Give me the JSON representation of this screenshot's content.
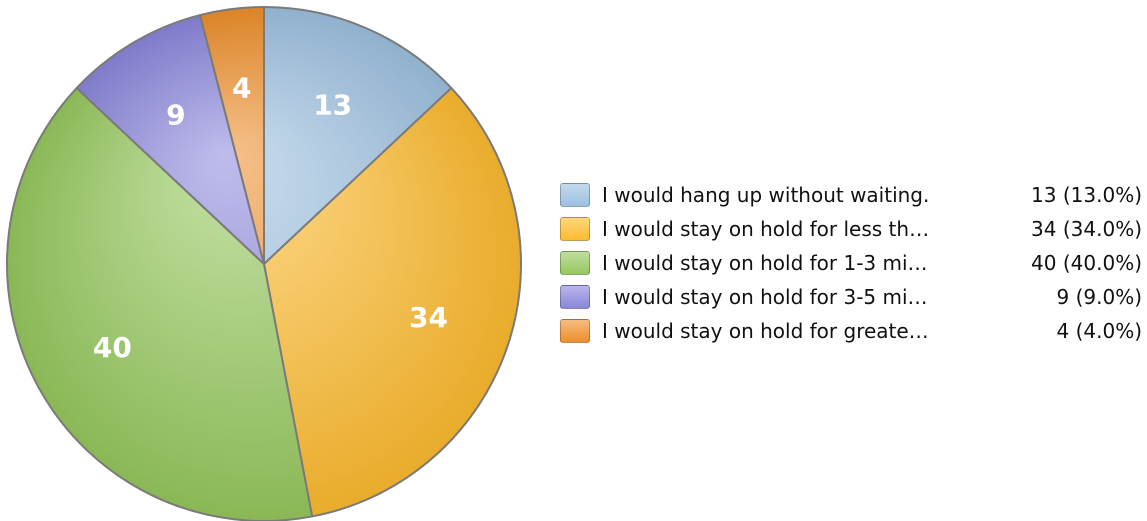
{
  "chart_data": {
    "type": "pie",
    "categories": [
      "I would hang up without waiting.",
      "I would stay on hold for less th…",
      "I would stay on hold for 1-3 mi…",
      "I would stay on hold for 3-5 mi…",
      "I would stay on hold for greate…"
    ],
    "values": [
      13,
      34,
      40,
      9,
      4
    ],
    "slice_labels": [
      "13",
      "34",
      "40",
      "9",
      "4"
    ],
    "legend_values": [
      "13 (13.0%)",
      "34 (34.0%)",
      "40 (40.0%)",
      "9 (9.0%)",
      "4 (4.0%)"
    ],
    "colors": [
      "#9cc0e0",
      "#fdbb2f",
      "#96c85e",
      "#8a86dc",
      "#ee8f2c"
    ],
    "legend_placement": "right"
  }
}
